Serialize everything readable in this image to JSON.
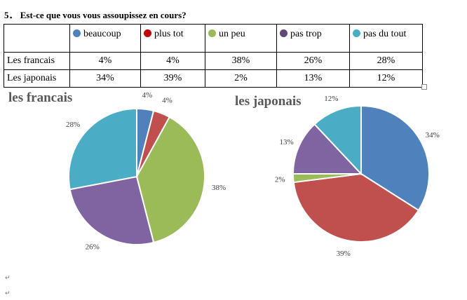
{
  "question": "5． Est-ce que vous vous assoupissez en cours?",
  "table": {
    "columns": [
      {
        "label": "beaucoup",
        "color": "#4f81bd"
      },
      {
        "label": "plus tot",
        "color": "#c00000"
      },
      {
        "label": "un peu",
        "color": "#9bbb59"
      },
      {
        "label": "pas trop",
        "color": "#604a7b"
      },
      {
        "label": "pas du tout",
        "color": "#4bacc6"
      }
    ],
    "rows": [
      {
        "label": "Les francais",
        "values": [
          "4%",
          "4%",
          "38%",
          "26%",
          "28%"
        ]
      },
      {
        "label": "Les japonais",
        "values": [
          "34%",
          "39%",
          "2%",
          "13%",
          "12%"
        ]
      }
    ]
  },
  "chart_data": [
    {
      "type": "pie",
      "title": "les francais",
      "categories": [
        "beaucoup",
        "plus tot",
        "un peu",
        "pas trop",
        "pas du tout"
      ],
      "values": [
        4,
        4,
        38,
        26,
        28
      ],
      "labels": [
        "4%",
        "4%",
        "38%",
        "26%",
        "28%"
      ],
      "colors": [
        "#4f81bd",
        "#c0504d",
        "#9bbb59",
        "#8064a2",
        "#4bacc6"
      ]
    },
    {
      "type": "pie",
      "title": "les japonais",
      "categories": [
        "beaucoup",
        "plus tot",
        "un peu",
        "pas trop",
        "pas du tout"
      ],
      "values": [
        34,
        39,
        2,
        13,
        12
      ],
      "labels": [
        "34%",
        "39%",
        "2%",
        "13%",
        "12%"
      ],
      "colors": [
        "#4f81bd",
        "#c0504d",
        "#9bbb59",
        "#8064a2",
        "#4bacc6"
      ]
    }
  ]
}
